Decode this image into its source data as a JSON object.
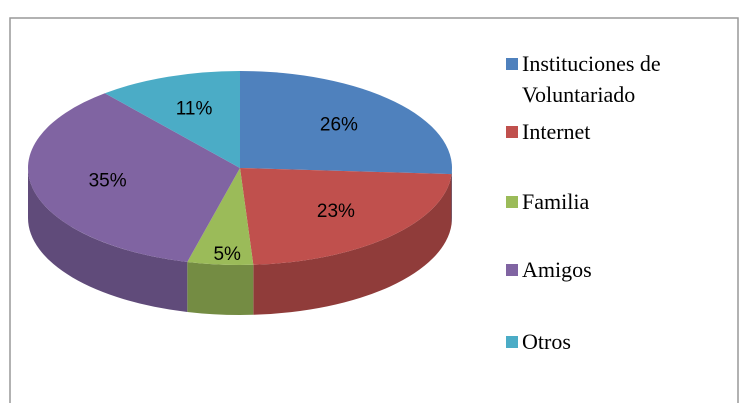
{
  "chart_data": {
    "type": "pie",
    "categories": [
      "Instituciones de Voluntariado",
      "Internet",
      "Familia",
      "Amigos",
      "Otros"
    ],
    "values": [
      26,
      23,
      5,
      35,
      11
    ],
    "value_labels": [
      "26%",
      "23%",
      "5%",
      "35%",
      "11%"
    ],
    "colors": [
      "#4f81bd",
      "#c0504d",
      "#9bbb59",
      "#8064a2",
      "#4bacc6"
    ],
    "legend": "right"
  }
}
